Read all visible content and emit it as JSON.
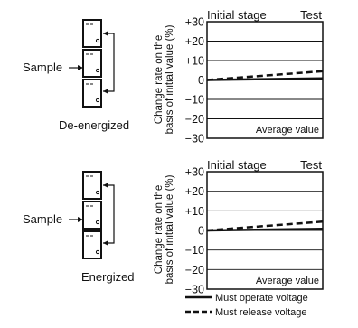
{
  "chart_data": [
    {
      "type": "line",
      "condition": "De-energized",
      "sample_label": "Sample",
      "top_left": "Initial stage",
      "top_right": "Test",
      "ylabel_line1": "Change rate on the",
      "ylabel_line2": "basis of initial value (%)",
      "yticks": [
        "+30",
        "+20",
        "+10",
        "0",
        "−10",
        "−20",
        "−30"
      ],
      "ylim": [
        -30,
        30
      ],
      "annotation": "Average value",
      "x": [
        0,
        1
      ],
      "series": [
        {
          "name": "Must operate voltage",
          "style": "solid",
          "values": [
            0,
            0.8
          ]
        },
        {
          "name": "Must release voltage",
          "style": "dashed",
          "values": [
            0,
            4.5
          ]
        }
      ]
    },
    {
      "type": "line",
      "condition": "Energized",
      "sample_label": "Sample",
      "top_left": "Initial stage",
      "top_right": "Test",
      "ylabel_line1": "Change rate on the",
      "ylabel_line2": "basis of initial value (%)",
      "yticks": [
        "+30",
        "+20",
        "+10",
        "0",
        "−10",
        "−20",
        "−30"
      ],
      "ylim": [
        -30,
        30
      ],
      "annotation": "Average value",
      "x": [
        0,
        1
      ],
      "series": [
        {
          "name": "Must operate voltage",
          "style": "solid",
          "values": [
            0,
            0.8
          ]
        },
        {
          "name": "Must release voltage",
          "style": "dashed",
          "values": [
            0,
            4.5
          ]
        }
      ]
    }
  ],
  "legend": {
    "solid_label": "Must operate voltage",
    "dashed_label": "Must release voltage"
  }
}
